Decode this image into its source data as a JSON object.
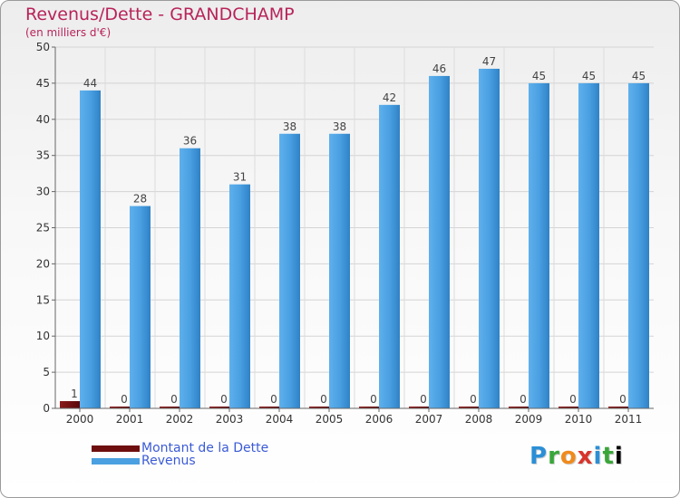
{
  "chart_data": {
    "type": "bar",
    "title": "Revenus/Dette - GRANDCHAMP",
    "subtitle": "(en milliers d'€)",
    "categories": [
      "2000",
      "2001",
      "2002",
      "2003",
      "2004",
      "2005",
      "2006",
      "2007",
      "2008",
      "2009",
      "2010",
      "2011"
    ],
    "series": [
      {
        "name": "Montant de la Dette",
        "color": "#6e0e0e",
        "values": [
          1,
          0,
          0,
          0,
          0,
          0,
          0,
          0,
          0,
          0,
          0,
          0
        ]
      },
      {
        "name": "Revenus",
        "color": "#4aa0e0",
        "values": [
          44,
          28,
          36,
          31,
          38,
          38,
          42,
          46,
          47,
          45,
          45,
          45
        ]
      }
    ],
    "ylim": [
      0,
      50
    ],
    "yticks": [
      0,
      5,
      10,
      15,
      20,
      25,
      30,
      35,
      40,
      45,
      50
    ],
    "grid": true,
    "legend_position": "bottom-left",
    "data_labels": true
  },
  "logo": {
    "text": "Proxiti"
  }
}
